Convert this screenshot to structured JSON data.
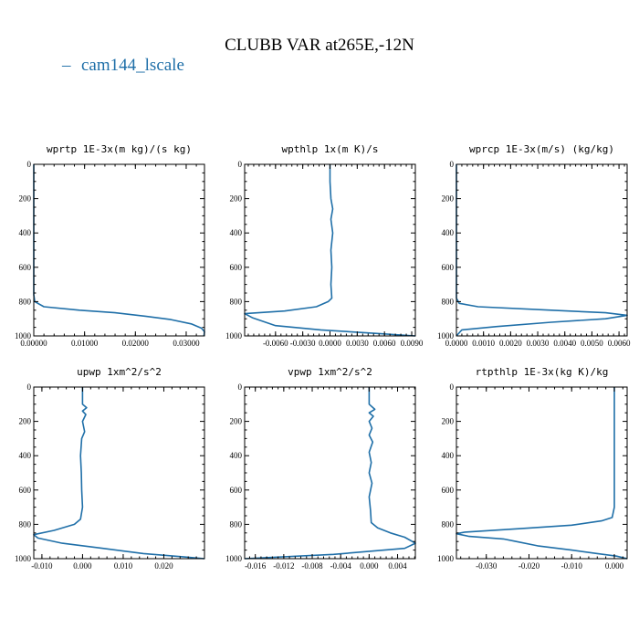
{
  "title": "CLUBB VAR at265E,-12N",
  "legend": {
    "label": "cam144_lscale",
    "color": "#1f6fa8"
  },
  "series_color": "#1f6fa8",
  "chart_data": [
    {
      "type": "line",
      "title": "wprtp  1E-3x(m kg)/(s kg)",
      "series": [
        {
          "name": "cam144_lscale",
          "points": [
            [
              0,
              0
            ],
            [
              0,
              760
            ],
            [
              0.0002,
              800
            ],
            [
              0.002,
              830
            ],
            [
              0.009,
              850
            ],
            [
              0.016,
              865
            ],
            [
              0.022,
              885
            ],
            [
              0.027,
              905
            ],
            [
              0.031,
              930
            ],
            [
              0.033,
              955
            ],
            [
              0.0336,
              975
            ],
            [
              0.0335,
              1000
            ]
          ]
        }
      ],
      "xlim": [
        0,
        0.0336
      ],
      "xticks": [
        0,
        0.01,
        0.02,
        0.03
      ],
      "xticklabels": [
        "0.00000",
        "0.01000",
        "0.02000",
        "0.03000"
      ],
      "ylim": [
        0,
        1000
      ],
      "yticks": [
        0,
        200,
        400,
        600,
        800,
        1000
      ],
      "yticklabels": [
        "0",
        "200",
        "400",
        "600",
        "800",
        "1000"
      ]
    },
    {
      "type": "line",
      "title": "wpthlp  1x(m K)/s",
      "series": [
        {
          "name": "cam144_lscale",
          "points": [
            [
              0,
              0
            ],
            [
              0,
              100
            ],
            [
              0.0001,
              200
            ],
            [
              0.0003,
              260
            ],
            [
              0.0001,
              320
            ],
            [
              0.0003,
              400
            ],
            [
              0.0001,
              500
            ],
            [
              0.0002,
              600
            ],
            [
              0.0001,
              700
            ],
            [
              0.0002,
              780
            ],
            [
              -0.0002,
              800
            ],
            [
              -0.0015,
              830
            ],
            [
              -0.005,
              855
            ],
            [
              -0.0094,
              870
            ],
            [
              -0.0085,
              895
            ],
            [
              -0.006,
              940
            ],
            [
              -0.001,
              965
            ],
            [
              0.005,
              985
            ],
            [
              0.0094,
              1000
            ]
          ]
        }
      ],
      "xlim": [
        -0.0094,
        0.0094
      ],
      "xticks": [
        -0.006,
        -0.003,
        0,
        0.003,
        0.006,
        0.009
      ],
      "xticklabels": [
        "-0.0060",
        "-0.0030",
        "0.0000",
        "0.0030",
        "0.0060",
        "0.0090"
      ],
      "ylim": [
        0,
        1000
      ],
      "yticks": [
        0,
        200,
        400,
        600,
        800,
        1000
      ],
      "yticklabels": [
        "0",
        "200",
        "400",
        "600",
        "800",
        "1000"
      ]
    },
    {
      "type": "line",
      "title": "wprcp  1E-3x(m/s) (kg/kg)",
      "series": [
        {
          "name": "cam144_lscale",
          "points": [
            [
              0,
              0
            ],
            [
              0,
              780
            ],
            [
              0.0001,
              810
            ],
            [
              0.0008,
              830
            ],
            [
              0.0035,
              850
            ],
            [
              0.0055,
              865
            ],
            [
              0.0063,
              880
            ],
            [
              0.0055,
              900
            ],
            [
              0.0035,
              920
            ],
            [
              0.0015,
              945
            ],
            [
              0.0002,
              965
            ],
            [
              0,
              1000
            ]
          ]
        }
      ],
      "xlim": [
        0,
        0.0063
      ],
      "xticks": [
        0,
        0.001,
        0.002,
        0.003,
        0.004,
        0.005,
        0.006
      ],
      "xticklabels": [
        "0.0000",
        "0.0010",
        "0.0020",
        "0.0030",
        "0.0040",
        "0.0050",
        "0.0060"
      ],
      "ylim": [
        0,
        1000
      ],
      "yticks": [
        0,
        200,
        400,
        600,
        800,
        1000
      ],
      "yticklabels": [
        "0",
        "200",
        "400",
        "600",
        "800",
        "1000"
      ]
    },
    {
      "type": "line",
      "title": "upwp  1xm^2/s^2",
      "series": [
        {
          "name": "cam144_lscale",
          "points": [
            [
              0,
              0
            ],
            [
              0,
              100
            ],
            [
              0.001,
              120
            ],
            [
              0,
              140
            ],
            [
              0.0008,
              160
            ],
            [
              0,
              200
            ],
            [
              0.0005,
              260
            ],
            [
              -0.0002,
              300
            ],
            [
              -0.0005,
              400
            ],
            [
              -0.0003,
              500
            ],
            [
              -0.0002,
              600
            ],
            [
              0,
              700
            ],
            [
              -0.0005,
              770
            ],
            [
              -0.002,
              800
            ],
            [
              -0.007,
              835
            ],
            [
              -0.012,
              860
            ],
            [
              -0.011,
              880
            ],
            [
              -0.005,
              910
            ],
            [
              0.005,
              940
            ],
            [
              0.015,
              970
            ],
            [
              0.025,
              990
            ],
            [
              0.03,
              1000
            ]
          ]
        }
      ],
      "xlim": [
        -0.012,
        0.03
      ],
      "xticks": [
        -0.01,
        0,
        0.01,
        0.02
      ],
      "xticklabels": [
        "-0.010",
        "0.000",
        "0.010",
        "0.020"
      ],
      "ylim": [
        0,
        1000
      ],
      "yticks": [
        0,
        200,
        400,
        600,
        800,
        1000
      ],
      "yticklabels": [
        "0",
        "200",
        "400",
        "600",
        "800",
        "1000"
      ]
    },
    {
      "type": "line",
      "title": "vpwp  1xm^2/s^2",
      "series": [
        {
          "name": "cam144_lscale",
          "points": [
            [
              0,
              0
            ],
            [
              0,
              100
            ],
            [
              0.0008,
              130
            ],
            [
              0,
              150
            ],
            [
              0.0006,
              170
            ],
            [
              0,
              200
            ],
            [
              0.0004,
              240
            ],
            [
              0,
              280
            ],
            [
              0.0005,
              320
            ],
            [
              0,
              380
            ],
            [
              0.0003,
              440
            ],
            [
              0,
              500
            ],
            [
              0.0004,
              560
            ],
            [
              0,
              640
            ],
            [
              0.0002,
              720
            ],
            [
              0.0003,
              790
            ],
            [
              0.0012,
              820
            ],
            [
              0.003,
              850
            ],
            [
              0.005,
              875
            ],
            [
              0.0065,
              910
            ],
            [
              0.005,
              940
            ],
            [
              -0.005,
              975
            ],
            [
              -0.0175,
              1000
            ]
          ]
        }
      ],
      "xlim": [
        -0.0175,
        0.0065
      ],
      "xticks": [
        -0.016,
        -0.012,
        -0.008,
        -0.004,
        0,
        0.004
      ],
      "xticklabels": [
        "-0.016",
        "-0.012",
        "-0.008",
        "-0.004",
        "0.000",
        "0.004"
      ],
      "ylim": [
        0,
        1000
      ],
      "yticks": [
        0,
        200,
        400,
        600,
        800,
        1000
      ],
      "yticklabels": [
        "0",
        "200",
        "400",
        "600",
        "800",
        "1000"
      ]
    },
    {
      "type": "line",
      "title": "rtpthlp  1E-3x(kg K)/kg",
      "series": [
        {
          "name": "cam144_lscale",
          "points": [
            [
              0,
              0
            ],
            [
              0,
              700
            ],
            [
              -0.0005,
              760
            ],
            [
              -0.003,
              780
            ],
            [
              -0.01,
              805
            ],
            [
              -0.022,
              825
            ],
            [
              -0.035,
              845
            ],
            [
              -0.037,
              855
            ],
            [
              -0.034,
              870
            ],
            [
              -0.026,
              885
            ],
            [
              -0.023,
              900
            ],
            [
              -0.018,
              925
            ],
            [
              -0.01,
              950
            ],
            [
              -0.004,
              970
            ],
            [
              0.0005,
              985
            ],
            [
              0.003,
              1000
            ]
          ]
        }
      ],
      "xlim": [
        -0.037,
        0.003
      ],
      "xticks": [
        -0.03,
        -0.02,
        -0.01,
        0
      ],
      "xticklabels": [
        "-0.030",
        "-0.020",
        "-0.010",
        "0.000"
      ],
      "ylim": [
        0,
        1000
      ],
      "yticks": [
        0,
        200,
        400,
        600,
        800,
        1000
      ],
      "yticklabels": [
        "0",
        "200",
        "400",
        "600",
        "800",
        "1000"
      ]
    }
  ]
}
